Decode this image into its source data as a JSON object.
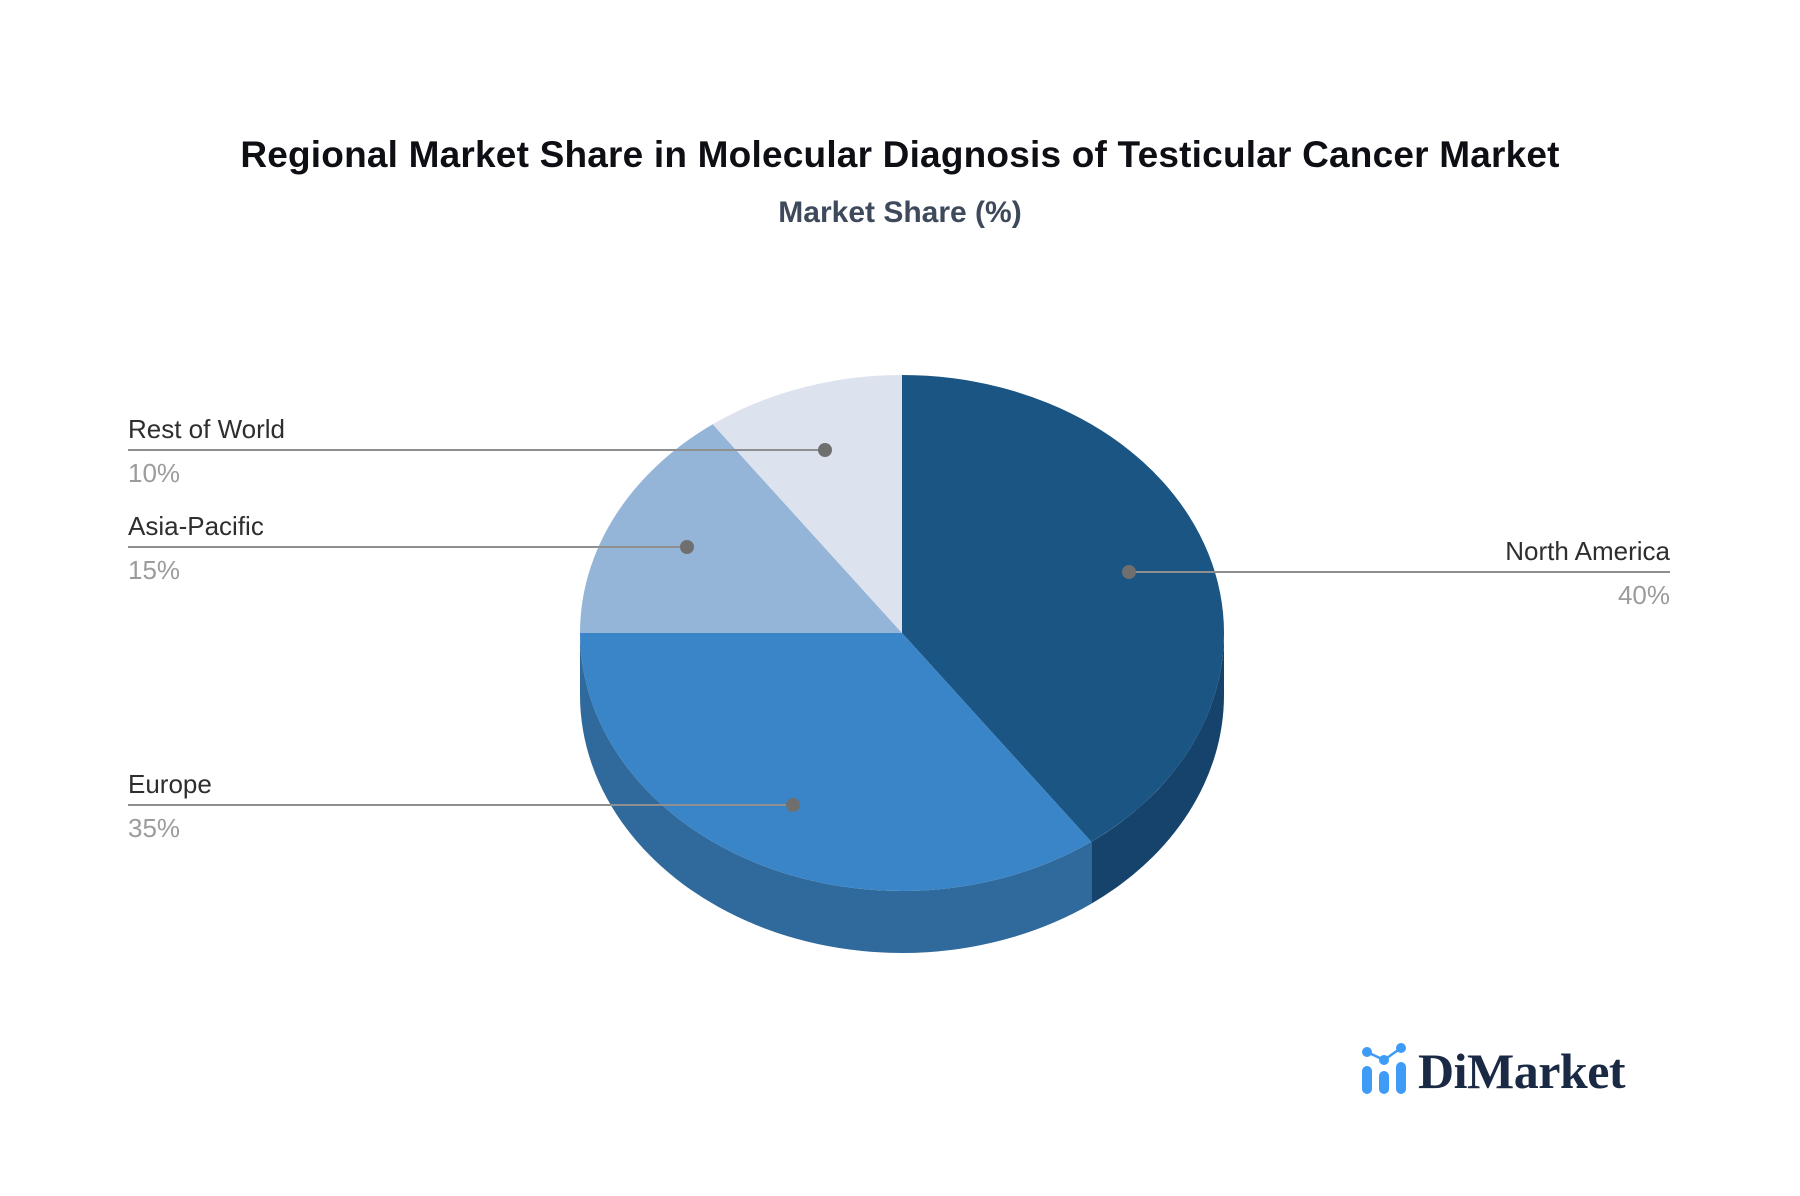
{
  "title": "Regional Market Share in Molecular Diagnosis of Testicular Cancer Market",
  "subtitle": "Market Share (%)",
  "logo": {
    "text": "DiMarket",
    "icon": "bar-line-chart-icon",
    "icon_color": "#3E9CF6",
    "text_color": "#1B2A44"
  },
  "colors": {
    "background": "#FFFFFF",
    "title_text": "#0D0F14",
    "subtitle_text": "#3E4A5B",
    "label_text": "#2E2E2E",
    "pct_text": "#9C9C9C",
    "leader_line": "#8F8F8F",
    "leader_dot": "#6F6F6F"
  },
  "chart_data": {
    "type": "pie",
    "title": "Regional Market Share in Molecular Diagnosis of Testicular Cancer Market",
    "subtitle": "Market Share (%)",
    "unit": "%",
    "effect": "3d",
    "direction": "clockwise",
    "start_angle_deg": 0,
    "legend_position": "none",
    "slices": [
      {
        "label": "North America",
        "value": 40,
        "pct_label": "40%",
        "color": "#1A5584",
        "side_color": "#16436C",
        "label_side": "right"
      },
      {
        "label": "Europe",
        "value": 35,
        "pct_label": "35%",
        "color": "#3A85C7",
        "side_color": "#306A9C",
        "label_side": "left"
      },
      {
        "label": "Asia-Pacific",
        "value": 15,
        "pct_label": "15%",
        "color": "#94B5D8",
        "side_color": "#7FA1C5",
        "label_side": "left"
      },
      {
        "label": "Rest of World",
        "value": 10,
        "pct_label": "10%",
        "color": "#DDE3EE",
        "side_color": "#C3CDDD",
        "label_side": "left"
      }
    ]
  }
}
